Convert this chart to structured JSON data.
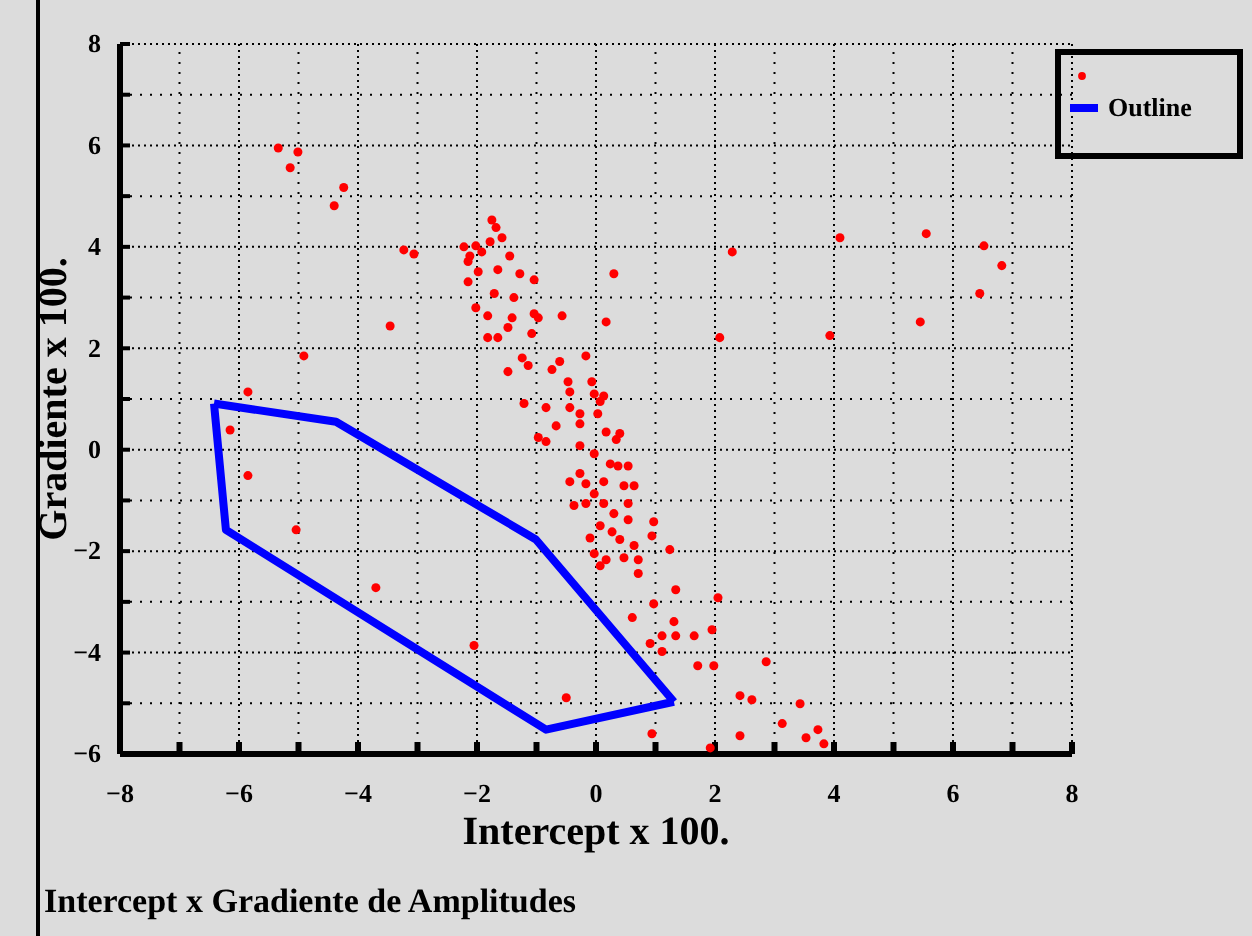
{
  "chart_data": {
    "type": "scatter",
    "title": "Intercept x Gradiente de Amplitudes",
    "xlabel": "Intercept x 100.",
    "ylabel": "Gradiente x 100.",
    "xlim": [
      -8,
      8
    ],
    "ylim": [
      -6,
      8
    ],
    "xticks": [
      -8,
      {
        "value": -7,
        "label": null
      },
      -6,
      {
        "value": -5,
        "label": null
      },
      -4,
      {
        "value": -3,
        "label": null
      },
      -2,
      {
        "value": -1,
        "label": null
      },
      0,
      {
        "value": 1,
        "label": null
      },
      2,
      {
        "value": 3,
        "label": null
      },
      4,
      {
        "value": 5,
        "label": null
      },
      6,
      {
        "value": 7,
        "label": null
      },
      8
    ],
    "yticks": [
      -6,
      {
        "value": -5,
        "label": null
      },
      -4,
      {
        "value": -3,
        "label": null
      },
      -2,
      {
        "value": -1,
        "label": null
      },
      0,
      {
        "value": 1,
        "label": null
      },
      2,
      {
        "value": 3,
        "label": null
      },
      4,
      {
        "value": 5,
        "label": null
      },
      6,
      {
        "value": 7,
        "label": null
      },
      8
    ],
    "grid": true,
    "legend": "top right",
    "marker": "circle",
    "series": [
      {
        "color": "#ff0000",
        "x": [
          -5.34,
          -5.01,
          -5.14,
          -4.24,
          -4.4,
          -3.23,
          -3.06,
          -3.46,
          -4.91,
          -5.85,
          -6.15,
          -5.85,
          -1.75,
          -1.68,
          -2.22,
          -1.58,
          -1.78,
          -2.02,
          -1.92,
          -2.12,
          -1.45,
          -2.15,
          -1.98,
          -1.65,
          -1.28,
          -1.04,
          -2.15,
          0.3,
          -1.71,
          -1.38,
          -2.02,
          -1.82,
          -1.04,
          -0.97,
          -0.57,
          0.17,
          -1.41,
          -1.48,
          -1.82,
          -1.65,
          -1.08,
          -1.24,
          -1.14,
          -0.74,
          -0.61,
          -0.17,
          -1.48,
          -0.47,
          -0.07,
          -0.03,
          -0.44,
          -1.21,
          -0.84,
          -0.44,
          0.13,
          0.07,
          0.03,
          -0.27,
          -0.67,
          -0.27,
          0.17,
          0.4,
          -0.97,
          -0.84,
          -0.27,
          -0.03,
          0.24,
          0.37,
          0.54,
          -0.44,
          -0.17,
          0.13,
          0.47,
          0.64,
          -0.37,
          -0.17,
          0.13,
          0.54,
          0.54,
          0.97,
          0.27,
          -0.1,
          0.4,
          0.64,
          0.94,
          -0.03,
          0.17,
          0.47,
          0.71,
          0.71,
          1.24,
          0.07,
          1.34,
          2.05,
          0.97,
          0.61,
          1.31,
          1.95,
          1.11,
          1.34,
          1.65,
          0.91,
          1.11,
          1.71,
          1.98,
          2.86,
          -2.05,
          -0.5,
          2.42,
          2.62,
          3.43,
          3.13,
          3.73,
          3.53,
          3.83,
          0.94,
          1.92,
          2.42,
          -0.03,
          -0.27,
          0.3,
          0.07,
          0.34,
          2.29,
          2.08,
          4.1,
          3.93,
          5.55,
          5.45,
          6.52,
          6.82,
          6.45,
          -3.7,
          -5.04
        ],
        "values": [
          5.95,
          5.87,
          5.56,
          5.17,
          4.81,
          3.94,
          3.86,
          2.44,
          1.85,
          1.14,
          0.39,
          -0.51,
          4.53,
          4.38,
          4.0,
          4.18,
          4.1,
          4.02,
          3.9,
          3.82,
          3.82,
          3.71,
          3.51,
          3.55,
          3.47,
          3.35,
          3.31,
          3.47,
          3.08,
          3.0,
          2.8,
          2.64,
          2.68,
          2.6,
          2.64,
          2.52,
          2.6,
          2.41,
          2.21,
          2.21,
          2.29,
          1.81,
          1.66,
          1.58,
          1.74,
          1.85,
          1.54,
          1.34,
          1.34,
          1.1,
          1.14,
          0.91,
          0.83,
          0.83,
          1.06,
          0.95,
          0.71,
          0.71,
          0.47,
          0.51,
          0.35,
          0.32,
          0.24,
          0.16,
          0.08,
          -0.08,
          -0.28,
          -0.32,
          -0.32,
          -0.63,
          -0.67,
          -0.63,
          -0.71,
          -0.71,
          -1.1,
          -1.06,
          -1.06,
          -1.06,
          -1.38,
          -1.42,
          -1.62,
          -1.74,
          -1.77,
          -1.89,
          -1.7,
          -2.05,
          -2.17,
          -2.13,
          -2.17,
          -2.44,
          -1.97,
          -2.29,
          -2.76,
          -2.92,
          -3.04,
          -3.31,
          -3.39,
          -3.55,
          -3.67,
          -3.67,
          -3.67,
          -3.82,
          -3.98,
          -4.26,
          -4.26,
          -4.18,
          -3.86,
          -4.89,
          -4.85,
          -4.93,
          -5.01,
          -5.4,
          -5.52,
          -5.68,
          -5.8,
          -5.6,
          -5.88,
          -5.64,
          -0.87,
          -0.47,
          -1.26,
          -1.5,
          0.2,
          3.9,
          2.21,
          4.18,
          2.25,
          4.26,
          2.52,
          4.02,
          3.63,
          3.08,
          -2.72,
          -1.58
        ]
      },
      {
        "type": "line",
        "name": "Outline",
        "color": "#0000ff",
        "line_style": "solid",
        "marker": "none",
        "x": [
          -6.42,
          -4.37,
          -1.01,
          1.31
        ],
        "values": [
          0.91,
          0.55,
          -1.77,
          -4.97
        ]
      },
      {
        "type": "line",
        "color": "#0000ff",
        "line_style": "solid",
        "marker": "none",
        "x": [
          -6.42,
          -6.22,
          -0.84,
          1.31
        ],
        "values": [
          0.91,
          -1.58,
          -5.52,
          -4.97
        ]
      }
    ]
  }
}
